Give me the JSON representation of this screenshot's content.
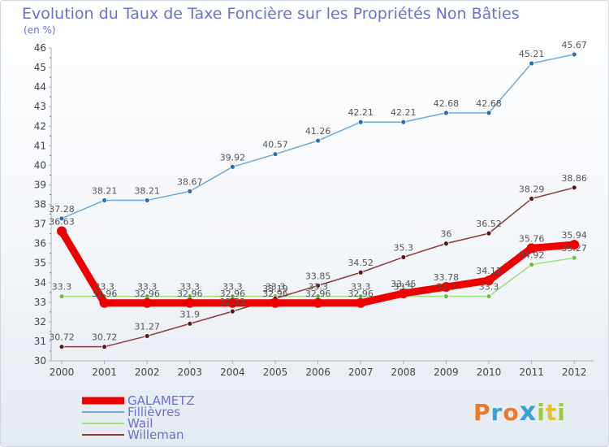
{
  "chart_data": {
    "type": "line",
    "title": "Evolution du Taux de Taxe Foncière sur les Propriétés Non Bâties",
    "ylabel": "(en %)",
    "xlabel": "",
    "ylim": [
      30,
      46
    ],
    "yticks": [
      "30",
      "31",
      "32",
      "33",
      "34",
      "35",
      "36",
      "37",
      "38",
      "39",
      "40",
      "41",
      "42",
      "43",
      "44",
      "45",
      "46"
    ],
    "categories": [
      "2000",
      "2001",
      "2002",
      "2003",
      "2004",
      "2005",
      "2006",
      "2007",
      "2008",
      "2009",
      "2010",
      "2011",
      "2012"
    ],
    "series": [
      {
        "name": "GALAMETZ",
        "color": "#ee0000",
        "width": 9,
        "values": [
          36.63,
          32.96,
          32.96,
          32.96,
          32.96,
          32.96,
          32.96,
          32.96,
          33.45,
          33.78,
          34.11,
          35.76,
          35.94
        ],
        "labels": [
          "36.63",
          "32.96",
          "32.96",
          "32.96",
          "32.96",
          "32.96",
          "32.96",
          "32.96",
          "33.45",
          "33.78",
          "34.11",
          "35.76",
          "35.94"
        ]
      },
      {
        "name": "Fillièvres",
        "color": "#6fa8d6",
        "width": 1.5,
        "values": [
          37.28,
          38.21,
          38.21,
          38.67,
          39.92,
          40.57,
          41.26,
          42.21,
          42.21,
          42.68,
          42.68,
          45.21,
          45.67
        ],
        "labels": [
          "37.28",
          "38.21",
          "38.21",
          "38.67",
          "39.92",
          "40.57",
          "41.26",
          "42.21",
          "42.21",
          "42.68",
          "42.68",
          "45.21",
          "45.67"
        ]
      },
      {
        "name": "Wail",
        "color": "#9ee07a",
        "width": 1.5,
        "values": [
          33.3,
          33.3,
          33.3,
          33.3,
          33.3,
          33.3,
          33.3,
          33.3,
          33.3,
          33.3,
          33.3,
          34.92,
          35.27
        ],
        "labels": [
          "33.3",
          "33.3",
          "33.3",
          "33.3",
          "33.3",
          "33.3",
          "33.3",
          "33.3",
          "33.3",
          "33.3",
          "33.3",
          "34.92",
          "35.27"
        ]
      },
      {
        "name": "Willeman",
        "color": "#8a3a3a",
        "width": 1.5,
        "values": [
          30.72,
          30.72,
          31.27,
          31.9,
          32.53,
          33.19,
          33.85,
          34.52,
          35.3,
          36.0,
          36.52,
          38.29,
          38.86
        ],
        "labels": [
          "30.72",
          "30.72",
          "31.27",
          "31.9",
          "32.53",
          "33.19",
          "33.85",
          "34.52",
          "35.3",
          "36",
          "36.52",
          "38.29",
          "38.86"
        ]
      }
    ],
    "legend_position": "bottom-left",
    "grid": false
  },
  "brand": {
    "letters": [
      "P",
      "r",
      "o",
      "x",
      "i",
      "t",
      "i"
    ],
    "colors": [
      "#e87a2a",
      "#3aa0d8",
      "#e87a2a",
      "#3aa0d8",
      "#9ccc3a",
      "#e8c02a",
      "#9ccc3a"
    ]
  }
}
